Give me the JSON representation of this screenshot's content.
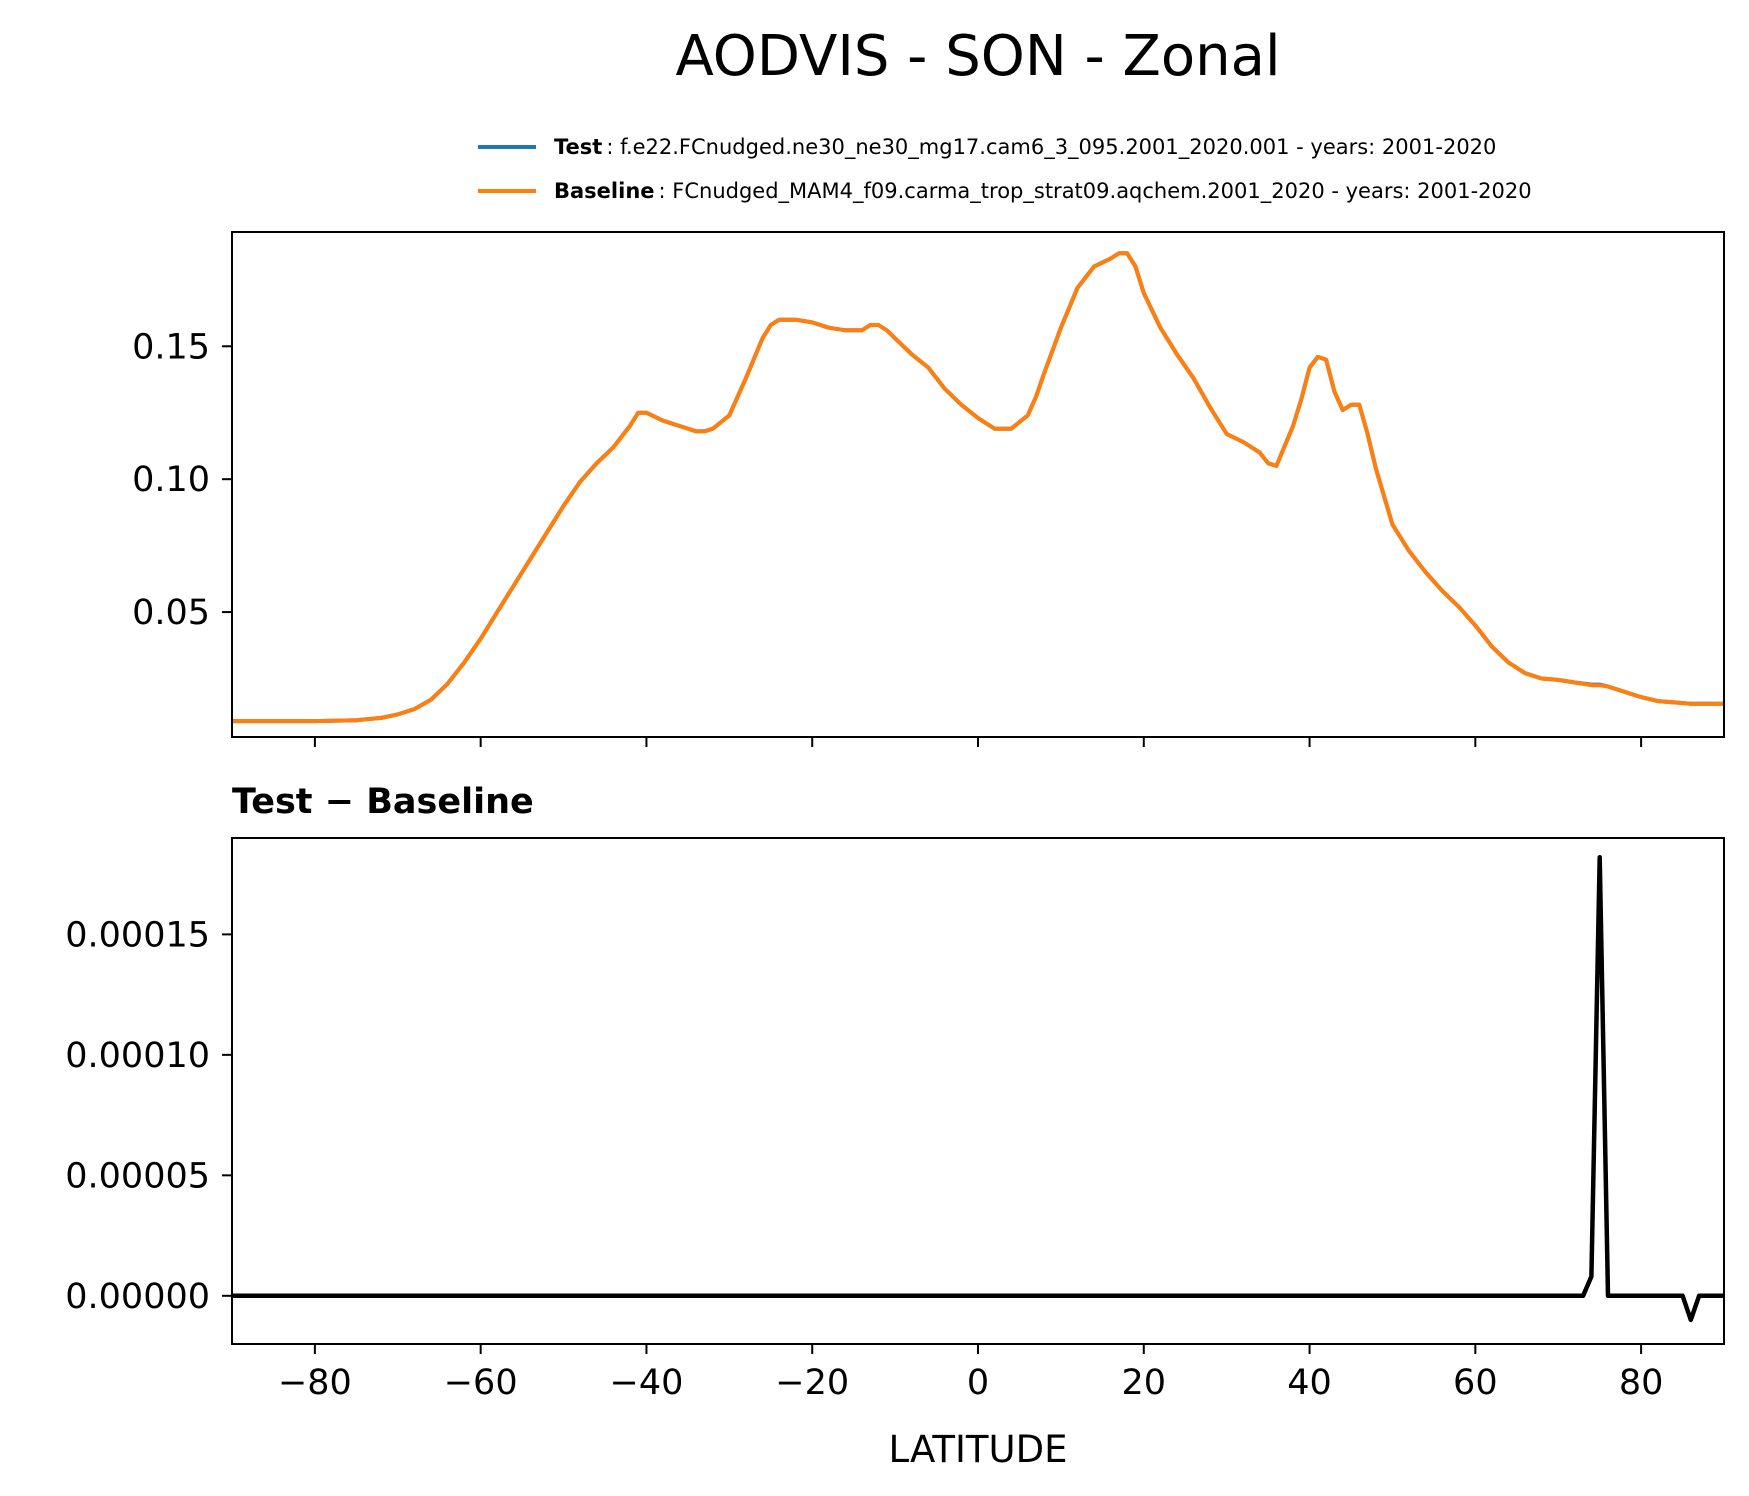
{
  "chart_data": [
    {
      "type": "line",
      "title": "AODVIS - SON - Zonal",
      "xlim": [
        -90,
        90
      ],
      "ylim": [
        0.003,
        0.193
      ],
      "yticks": [
        0.05,
        0.1,
        0.15
      ],
      "yticklabels": [
        "0.05",
        "0.10",
        "0.15"
      ],
      "xticks": [
        -80,
        -60,
        -40,
        -20,
        0,
        20,
        40,
        60,
        80
      ],
      "legend": {
        "placement": "above-top-right",
        "entries": [
          {
            "label": "Test",
            "description": ": f.e22.FCnudged.ne30_ne30_mg17.cam6_3_095.2001_2020.001 - years: 2001-2020",
            "color": "#1f77b4"
          },
          {
            "label": "Baseline",
            "description": ": FCnudged_MAM4_f09.carma_trop_strat09.aqchem.2001_2020 - years: 2001-2020",
            "color": "#ff7f0e"
          }
        ]
      },
      "series": [
        {
          "name": "Baseline",
          "color": "#ff7f0e",
          "x": [
            -90,
            -85,
            -80,
            -75,
            -72,
            -70,
            -68,
            -66,
            -64,
            -62,
            -60,
            -58,
            -56,
            -54,
            -52,
            -50,
            -48,
            -46,
            -44,
            -42,
            -41,
            -40,
            -38,
            -36,
            -34,
            -33,
            -32,
            -30,
            -28,
            -26,
            -25,
            -24,
            -22,
            -20,
            -18,
            -16,
            -14,
            -13,
            -12,
            -11,
            -10,
            -8,
            -6,
            -4,
            -2,
            0,
            2,
            4,
            6,
            7,
            8,
            10,
            12,
            14,
            16,
            17,
            18,
            19,
            20,
            22,
            24,
            26,
            28,
            30,
            32,
            34,
            35,
            36,
            38,
            39,
            40,
            41,
            42,
            43,
            44,
            45,
            46,
            47,
            48,
            50,
            52,
            54,
            56,
            58,
            60,
            62,
            64,
            66,
            68,
            70,
            72,
            74,
            75,
            76,
            78,
            80,
            82,
            84,
            86,
            88,
            90
          ],
          "values": [
            0.009,
            0.009,
            0.009,
            0.0093,
            0.0102,
            0.0115,
            0.0135,
            0.017,
            0.023,
            0.031,
            0.04,
            0.05,
            0.06,
            0.07,
            0.08,
            0.09,
            0.099,
            0.106,
            0.112,
            0.12,
            0.125,
            0.125,
            0.122,
            0.12,
            0.118,
            0.118,
            0.119,
            0.124,
            0.138,
            0.153,
            0.158,
            0.16,
            0.16,
            0.159,
            0.157,
            0.156,
            0.156,
            0.158,
            0.158,
            0.156,
            0.153,
            0.147,
            0.142,
            0.134,
            0.128,
            0.123,
            0.119,
            0.119,
            0.124,
            0.131,
            0.14,
            0.157,
            0.172,
            0.18,
            0.183,
            0.185,
            0.185,
            0.18,
            0.17,
            0.157,
            0.147,
            0.138,
            0.127,
            0.117,
            0.114,
            0.11,
            0.106,
            0.105,
            0.12,
            0.13,
            0.142,
            0.146,
            0.145,
            0.133,
            0.126,
            0.128,
            0.128,
            0.117,
            0.104,
            0.083,
            0.073,
            0.065,
            0.058,
            0.052,
            0.045,
            0.037,
            0.031,
            0.027,
            0.025,
            0.0245,
            0.0235,
            0.0225,
            0.0225,
            0.022,
            0.02,
            0.018,
            0.0165,
            0.016,
            0.0155,
            0.0155,
            0.0155
          ]
        },
        {
          "name": "Test",
          "color": "#1f77b4",
          "x": [
            -90,
            -85,
            -80,
            -75,
            -72,
            -70,
            -68,
            -66,
            -64,
            -62,
            -60,
            -58,
            -56,
            -54,
            -52,
            -50,
            -48,
            -46,
            -44,
            -42,
            -41,
            -40,
            -38,
            -36,
            -34,
            -33,
            -32,
            -30,
            -28,
            -26,
            -25,
            -24,
            -22,
            -20,
            -18,
            -16,
            -14,
            -13,
            -12,
            -11,
            -10,
            -8,
            -6,
            -4,
            -2,
            0,
            2,
            4,
            6,
            7,
            8,
            10,
            12,
            14,
            16,
            17,
            18,
            19,
            20,
            22,
            24,
            26,
            28,
            30,
            32,
            34,
            35,
            36,
            38,
            39,
            40,
            41,
            42,
            43,
            44,
            45,
            46,
            47,
            48,
            50,
            52,
            54,
            56,
            58,
            60,
            62,
            64,
            66,
            68,
            70,
            72,
            74,
            75,
            76,
            78,
            80,
            82,
            84,
            86,
            88,
            90
          ],
          "values": [
            0.009,
            0.009,
            0.009,
            0.0093,
            0.0102,
            0.0115,
            0.0135,
            0.017,
            0.023,
            0.031,
            0.04,
            0.05,
            0.06,
            0.07,
            0.08,
            0.09,
            0.099,
            0.106,
            0.112,
            0.12,
            0.125,
            0.125,
            0.122,
            0.12,
            0.118,
            0.118,
            0.119,
            0.124,
            0.138,
            0.153,
            0.158,
            0.16,
            0.16,
            0.159,
            0.157,
            0.156,
            0.156,
            0.158,
            0.158,
            0.156,
            0.153,
            0.147,
            0.142,
            0.134,
            0.128,
            0.123,
            0.119,
            0.119,
            0.124,
            0.131,
            0.14,
            0.157,
            0.172,
            0.18,
            0.183,
            0.185,
            0.185,
            0.18,
            0.17,
            0.157,
            0.147,
            0.138,
            0.127,
            0.117,
            0.114,
            0.11,
            0.106,
            0.105,
            0.12,
            0.13,
            0.142,
            0.146,
            0.145,
            0.133,
            0.126,
            0.128,
            0.128,
            0.117,
            0.104,
            0.083,
            0.073,
            0.065,
            0.058,
            0.052,
            0.045,
            0.037,
            0.031,
            0.027,
            0.025,
            0.0245,
            0.0235,
            0.0227,
            0.0227,
            0.022,
            0.02,
            0.018,
            0.0165,
            0.016,
            0.0155,
            0.0155,
            0.0155
          ]
        }
      ]
    },
    {
      "type": "line",
      "title": "Test − Baseline",
      "xlabel": "LATITUDE",
      "xlim": [
        -90,
        90
      ],
      "ylim": [
        -2e-05,
        0.00019
      ],
      "yticks": [
        0,
        5e-05,
        0.0001,
        0.00015
      ],
      "yticklabels": [
        "0.00000",
        "0.00005",
        "0.00010",
        "0.00015"
      ],
      "xticks": [
        -80,
        -60,
        -40,
        -20,
        0,
        20,
        40,
        60,
        80
      ],
      "xticklabels": [
        "−80",
        "−60",
        "−40",
        "−20",
        "0",
        "20",
        "40",
        "60",
        "80"
      ],
      "series": [
        {
          "name": "Test - Baseline",
          "color": "#000000",
          "x": [
            -90,
            73,
            74,
            75,
            76,
            85,
            86,
            87,
            90
          ],
          "values": [
            0,
            0,
            8e-06,
            0.000182,
            0,
            0,
            -1e-05,
            0,
            0
          ]
        }
      ]
    }
  ]
}
